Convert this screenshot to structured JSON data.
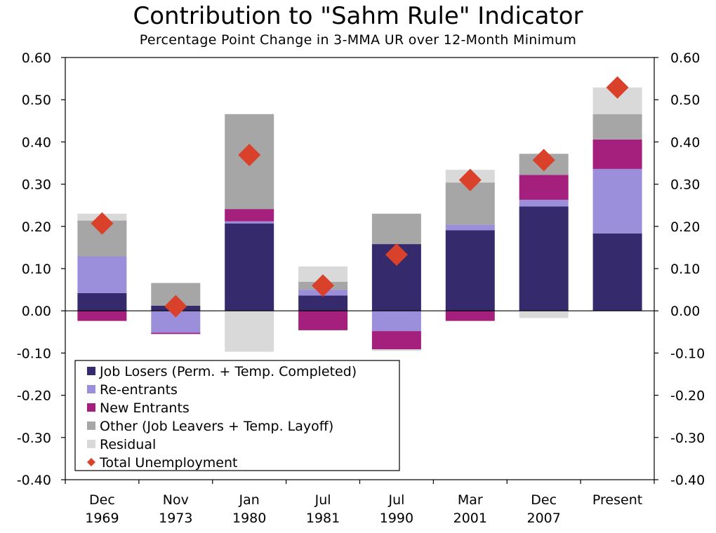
{
  "chart_data": {
    "type": "bar",
    "stacked": true,
    "title": "Contribution to \"Sahm Rule\" Indicator",
    "subtitle": "Percentage Point Change in 3-MMA UR over 12-Month Minimum",
    "categories": [
      [
        "Dec",
        "1969"
      ],
      [
        "Nov",
        "1973"
      ],
      [
        "Jan",
        "1980"
      ],
      [
        "Jul",
        "1981"
      ],
      [
        "Jul",
        "1990"
      ],
      [
        "Mar",
        "2001"
      ],
      [
        "Dec",
        "2007"
      ],
      [
        "Present"
      ]
    ],
    "ylim": [
      -0.4,
      0.6
    ],
    "yticks": [
      "0.60",
      "0.50",
      "0.40",
      "0.30",
      "0.20",
      "0.10",
      "0.00",
      "-0.10",
      "-0.20",
      "-0.30",
      "-0.40"
    ],
    "ytick_values": [
      0.6,
      0.5,
      0.4,
      0.3,
      0.2,
      0.1,
      0.0,
      -0.1,
      -0.2,
      -0.3,
      -0.4
    ],
    "series": [
      {
        "name": "Job Losers (Perm. + Temp. Completed)",
        "color": "#352a6b",
        "values": [
          0.042,
          0.012,
          0.207,
          0.036,
          0.158,
          0.191,
          0.247,
          0.183
        ]
      },
      {
        "name": "Re-entrants",
        "color": "#9b8fdb",
        "values": [
          0.087,
          -0.052,
          0.005,
          0.014,
          -0.048,
          0.013,
          0.016,
          0.153
        ]
      },
      {
        "name": "New Entrants",
        "color": "#a4207c",
        "values": [
          -0.024,
          -0.003,
          0.029,
          -0.046,
          -0.043,
          -0.024,
          0.059,
          0.07
        ]
      },
      {
        "name": "Other (Job Leavers + Temp. Layoff)",
        "color": "#a6a6a6",
        "values": [
          0.085,
          0.054,
          0.225,
          0.019,
          0.072,
          0.1,
          0.05,
          0.06
        ]
      },
      {
        "name": "Residual",
        "color": "#d9d9d9",
        "values": [
          0.016,
          0,
          -0.097,
          0.036,
          -0.004,
          0.03,
          -0.017,
          0.063
        ]
      }
    ],
    "total": {
      "name": "Total Unemployment",
      "color": "#d9412a",
      "marker": "diamond",
      "values": [
        0.207,
        0.011,
        0.369,
        0.06,
        0.133,
        0.31,
        0.357,
        0.529
      ]
    },
    "legend_position": "bottom-left",
    "grid": false
  }
}
